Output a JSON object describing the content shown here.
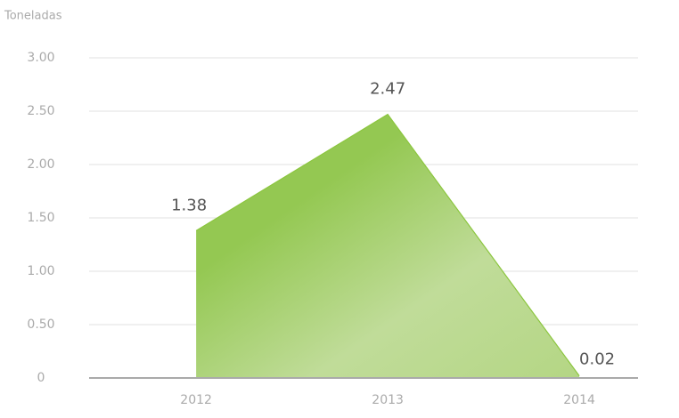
{
  "chart_data": {
    "type": "area",
    "y_label": "Toneladas",
    "categories": [
      "2012",
      "2013",
      "2014"
    ],
    "values": [
      1.38,
      2.47,
      0.02
    ],
    "color": "#8cc63f",
    "ylim": [
      0,
      3
    ],
    "yticks": [
      0,
      {
        "value": 0.5,
        "label": "0.50"
      },
      {
        "value": 1,
        "label": "1.00"
      },
      {
        "value": 1.5,
        "label": "1.50"
      },
      {
        "value": 2,
        "label": "2.00"
      },
      {
        "value": 2.5,
        "label": "2.50"
      },
      {
        "value": 3,
        "label": "3.00"
      }
    ],
    "grid": true
  }
}
